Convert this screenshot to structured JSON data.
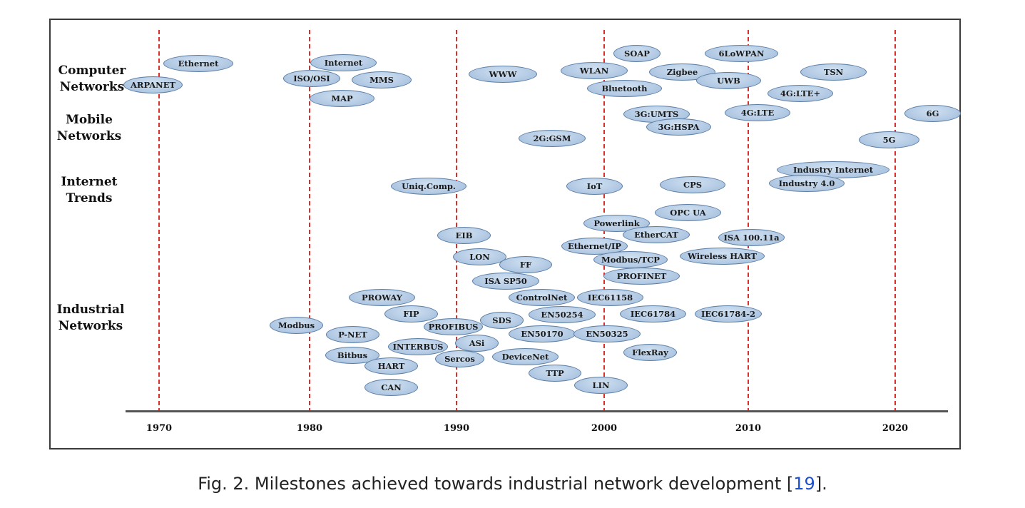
{
  "categories": {
    "computer": [
      "Computer",
      "Networks"
    ],
    "mobile": [
      "Mobile",
      "Networks"
    ],
    "internet": [
      "Internet",
      "Trends"
    ],
    "industrial": [
      "Industrial",
      "Networks"
    ]
  },
  "years": [
    "1970",
    "1980",
    "1990",
    "2000",
    "2010",
    "2020"
  ],
  "milestones": {
    "ethernet": "Ethernet",
    "arpanet": "ARPANET",
    "internet": "Internet",
    "iso_osi": "ISO/OSI",
    "mms": "MMS",
    "map": "MAP",
    "www": "WWW",
    "soap": "SOAP",
    "lowpan": "6LoWPAN",
    "wlan": "WLAN",
    "zigbee": "Zigbee",
    "tsn": "TSN",
    "uwb": "UWB",
    "bluetooth": "Bluetooth",
    "lte_plus": "4G:LTE+",
    "umts": "3G:UMTS",
    "lte": "4G:LTE",
    "g6": "6G",
    "hspa": "3G:HSPA",
    "gsm": "2G:GSM",
    "g5": "5G",
    "industry_internet": "Industry Internet",
    "uniq_comp": "Uniq.Comp.",
    "iot": "IoT",
    "cps": "CPS",
    "industry40": "Industry 4.0",
    "opc_ua": "OPC UA",
    "powerlink": "Powerlink",
    "eib": "EIB",
    "ethercat": "EtherCAT",
    "isa100": "ISA 100.11a",
    "ethernet_ip": "Ethernet/IP",
    "lon": "LON",
    "modbus_tcp": "Modbus/TCP",
    "wireless_hart": "Wireless HART",
    "ff": "FF",
    "profinet": "PROFINET",
    "isa_sp50": "ISA SP50",
    "proway": "PROWAY",
    "controlnet": "ControlNet",
    "iec61158": "IEC61158",
    "fip": "FIP",
    "en50254": "EN50254",
    "iec61784": "IEC61784",
    "iec61784_2": "IEC61784-2",
    "sds": "SDS",
    "modbus": "Modbus",
    "profibus": "PROFIBUS",
    "pnet": "P-NET",
    "en50170": "EN50170",
    "en50325": "EN50325",
    "asi": "ASi",
    "interbus": "INTERBUS",
    "bitbus": "Bitbus",
    "sercos": "Sercos",
    "devicenet": "DeviceNet",
    "flexray": "FlexRay",
    "hart": "HART",
    "ttp": "TTP",
    "can": "CAN",
    "lin": "LIN"
  },
  "caption": {
    "prefix": "Fig. 2.  Milestones achieved towards industrial network development [",
    "ref": "19",
    "suffix": "]."
  }
}
